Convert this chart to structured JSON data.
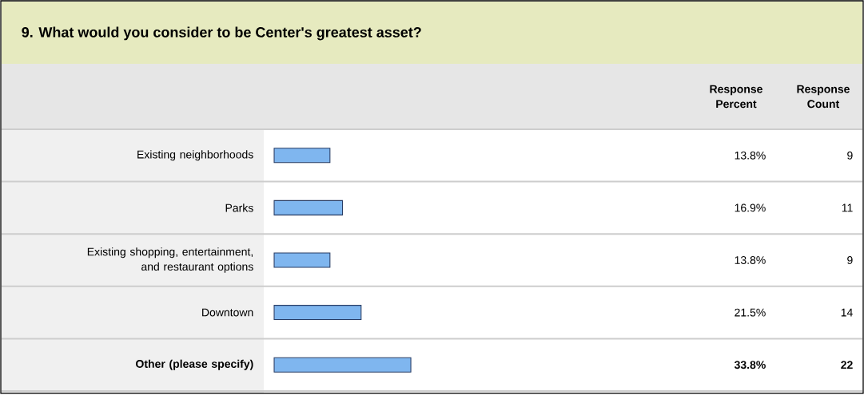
{
  "chart_data": {
    "type": "bar",
    "orientation": "horizontal",
    "title": "9. What would you consider to be Center's greatest asset?",
    "categories": [
      "Existing neighborhoods",
      "Parks",
      "Existing shopping, entertainment, and restaurant options",
      "Downtown",
      "Other (please specify)"
    ],
    "values": [
      13.8,
      16.9,
      13.8,
      21.5,
      33.8
    ],
    "value_labels": [
      "13.8%",
      "16.9%",
      "13.8%",
      "21.5%",
      "33.8%"
    ],
    "color": "#7fb6ef",
    "tick_labels": "y",
    "annotations": [
      "Response Percent",
      "Response Count",
      "9",
      "11",
      "9",
      "14",
      "22"
    ]
  }
}
